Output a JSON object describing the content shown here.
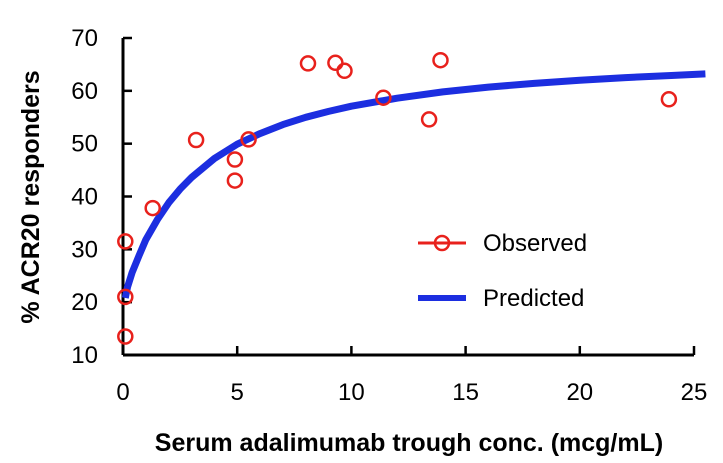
{
  "chart_data": {
    "type": "scatter",
    "title": "",
    "xlabel": "Serum adalimumab trough conc. (mcg/mL)",
    "ylabel": "% ACR20 responders",
    "xlim": [
      0,
      25
    ],
    "ylim": [
      10,
      70
    ],
    "xticks": [
      0,
      5,
      10,
      15,
      20,
      25
    ],
    "yticks": [
      10,
      20,
      30,
      40,
      50,
      60,
      70
    ],
    "grid": false,
    "legend_position": "center-right",
    "series": [
      {
        "name": "Observed",
        "kind": "markers",
        "marker": "open-circle",
        "color": "#e8211c",
        "points": [
          {
            "x": 0.1,
            "y": 13.5
          },
          {
            "x": 0.1,
            "y": 21
          },
          {
            "x": 0.1,
            "y": 31.5
          },
          {
            "x": 1.3,
            "y": 37.8
          },
          {
            "x": 3.2,
            "y": 50.7
          },
          {
            "x": 4.9,
            "y": 43
          },
          {
            "x": 4.9,
            "y": 47
          },
          {
            "x": 5.5,
            "y": 50.8
          },
          {
            "x": 8.1,
            "y": 65.2
          },
          {
            "x": 9.3,
            "y": 65.3
          },
          {
            "x": 9.7,
            "y": 63.8
          },
          {
            "x": 11.4,
            "y": 58.7
          },
          {
            "x": 13.4,
            "y": 54.6
          },
          {
            "x": 13.9,
            "y": 65.8
          },
          {
            "x": 23.9,
            "y": 58.4
          }
        ]
      },
      {
        "name": "Predicted",
        "kind": "line",
        "color": "#1c2ee0",
        "points": [
          {
            "x": 0.1,
            "y": 20.8
          },
          {
            "x": 0.2,
            "y": 22.9
          },
          {
            "x": 0.4,
            "y": 25.6
          },
          {
            "x": 0.7,
            "y": 28.8
          },
          {
            "x": 1,
            "y": 31.8
          },
          {
            "x": 1.5,
            "y": 35.6
          },
          {
            "x": 2,
            "y": 38.8
          },
          {
            "x": 2.5,
            "y": 41.4
          },
          {
            "x": 3,
            "y": 43.6
          },
          {
            "x": 4,
            "y": 47.2
          },
          {
            "x": 5,
            "y": 49.9
          },
          {
            "x": 6,
            "y": 51.9
          },
          {
            "x": 7,
            "y": 53.6
          },
          {
            "x": 8,
            "y": 55
          },
          {
            "x": 9,
            "y": 56.1
          },
          {
            "x": 10,
            "y": 57.1
          },
          {
            "x": 12,
            "y": 58.6
          },
          {
            "x": 14,
            "y": 59.8
          },
          {
            "x": 16,
            "y": 60.7
          },
          {
            "x": 18,
            "y": 61.4
          },
          {
            "x": 20,
            "y": 62
          },
          {
            "x": 22,
            "y": 62.5
          },
          {
            "x": 24,
            "y": 62.9
          },
          {
            "x": 25.5,
            "y": 63.2
          }
        ]
      }
    ]
  }
}
